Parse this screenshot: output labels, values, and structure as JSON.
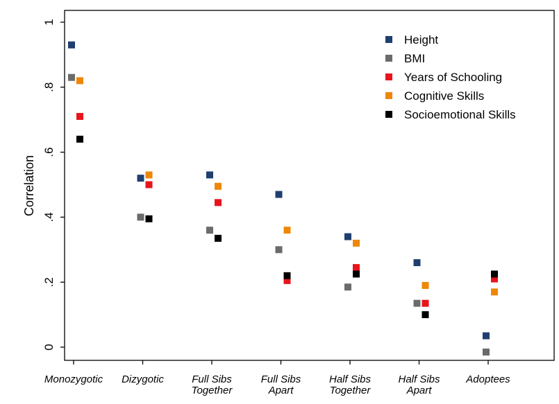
{
  "chart_data": {
    "type": "scatter",
    "title": "",
    "xlabel": "",
    "ylabel": "Correlation",
    "ylim": [
      0,
      1
    ],
    "yticks": [
      {
        "value": 0,
        "label": "0"
      },
      {
        "value": 0.2,
        "label": ".2"
      },
      {
        "value": 0.4,
        "label": ".4"
      },
      {
        "value": 0.6,
        "label": ".6"
      },
      {
        "value": 0.8,
        "label": ".8"
      },
      {
        "value": 1,
        "label": "1"
      }
    ],
    "categories": [
      {
        "lines": [
          "Monozygotic"
        ]
      },
      {
        "lines": [
          "Dizygotic"
        ]
      },
      {
        "lines": [
          "Full Sibs",
          "Together"
        ]
      },
      {
        "lines": [
          "Full Sibs",
          "Apart"
        ]
      },
      {
        "lines": [
          "Half Sibs",
          "Together"
        ]
      },
      {
        "lines": [
          "Half Sibs",
          "Apart"
        ]
      },
      {
        "lines": [
          "Adoptees"
        ]
      }
    ],
    "legend_position": "top-right",
    "grid": false,
    "series": [
      {
        "name": "Height",
        "color": "#1f3f6e",
        "values": [
          0.93,
          0.52,
          0.53,
          0.47,
          0.34,
          0.26,
          0.035
        ]
      },
      {
        "name": "BMI",
        "color": "#6b6b6b",
        "values": [
          0.83,
          0.4,
          0.36,
          0.3,
          0.185,
          0.135,
          -0.015
        ]
      },
      {
        "name": "Years of Schooling",
        "color": "#e8141c",
        "values": [
          0.71,
          0.5,
          0.445,
          0.205,
          0.245,
          0.135,
          0.21
        ]
      },
      {
        "name": "Cognitive Skills",
        "color": "#ee8707",
        "values": [
          0.82,
          0.53,
          0.495,
          0.36,
          0.32,
          0.19,
          0.17
        ]
      },
      {
        "name": "Socioemotional Skills",
        "color": "#000000",
        "values": [
          0.64,
          0.395,
          0.335,
          0.22,
          0.225,
          0.1,
          0.225
        ]
      }
    ]
  }
}
